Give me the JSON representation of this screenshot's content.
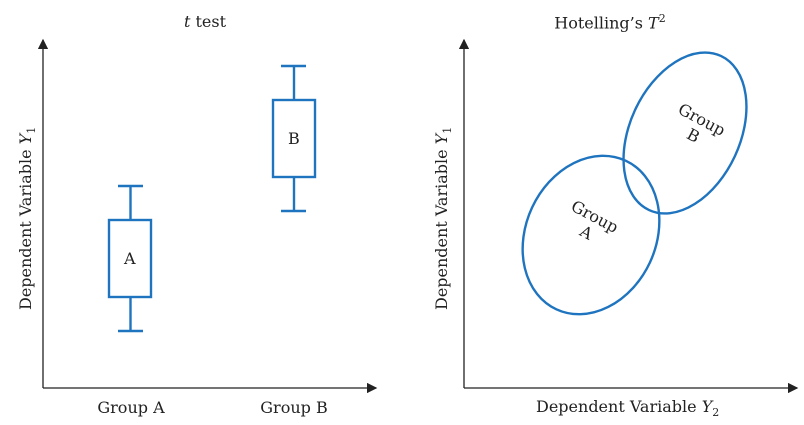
{
  "left_panel": {
    "title_var": "t",
    "title_rest": " test",
    "y_axis_label_text": "Dependent Variable ",
    "y_axis_label_var": "Y",
    "y_axis_label_sub": "1",
    "categories": [
      "Group A",
      "Group B"
    ],
    "box_labels": [
      "A",
      "B"
    ]
  },
  "right_panel": {
    "title_text": "Hotelling’s ",
    "title_var": "T",
    "title_sup": "2",
    "y_axis_label_text": "Dependent Variable ",
    "y_axis_label_var": "Y",
    "y_axis_label_sub": "1",
    "x_axis_label_text": "Dependent Variable ",
    "x_axis_label_var": "Y",
    "x_axis_label_sub": "2",
    "group_a_line1": "Group",
    "group_a_line2": "A",
    "group_b_line1": "Group",
    "group_b_line2": "B"
  },
  "colors": {
    "accent": "#1f74bf",
    "axis": "#222222"
  }
}
